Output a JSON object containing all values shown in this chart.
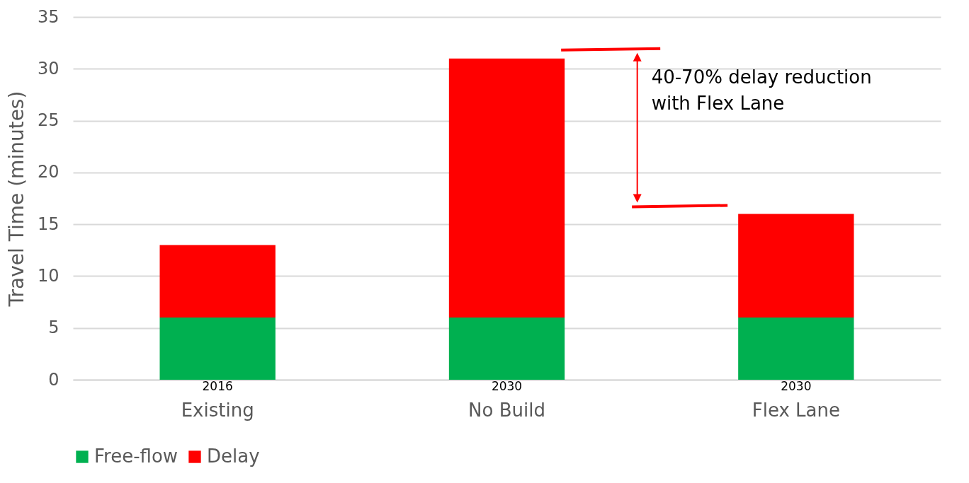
{
  "chart_data": {
    "type": "bar",
    "stacked": true,
    "ylabel": "Travel Time (minutes)",
    "categories": [
      "Existing",
      "No Build",
      "Flex Lane"
    ],
    "series": [
      {
        "name": "Free-flow",
        "color": "#00b050",
        "values": [
          6,
          6,
          6
        ]
      },
      {
        "name": "Delay",
        "color": "#ff0000",
        "values": [
          7,
          25,
          10
        ]
      }
    ],
    "ylim": [
      0,
      35
    ],
    "yticks": [
      0,
      5,
      10,
      15,
      20,
      25,
      30,
      35
    ],
    "grid": "y",
    "legend": "bottom",
    "annotations": [
      {
        "text": "2016",
        "x": "Existing",
        "y": 0
      },
      {
        "text": "2030",
        "x": "No Build",
        "y": 0
      },
      {
        "text": "2030",
        "x": "Flex Lane",
        "y": 0
      },
      "40-70% delay reduction with Flex Lane"
    ]
  }
}
